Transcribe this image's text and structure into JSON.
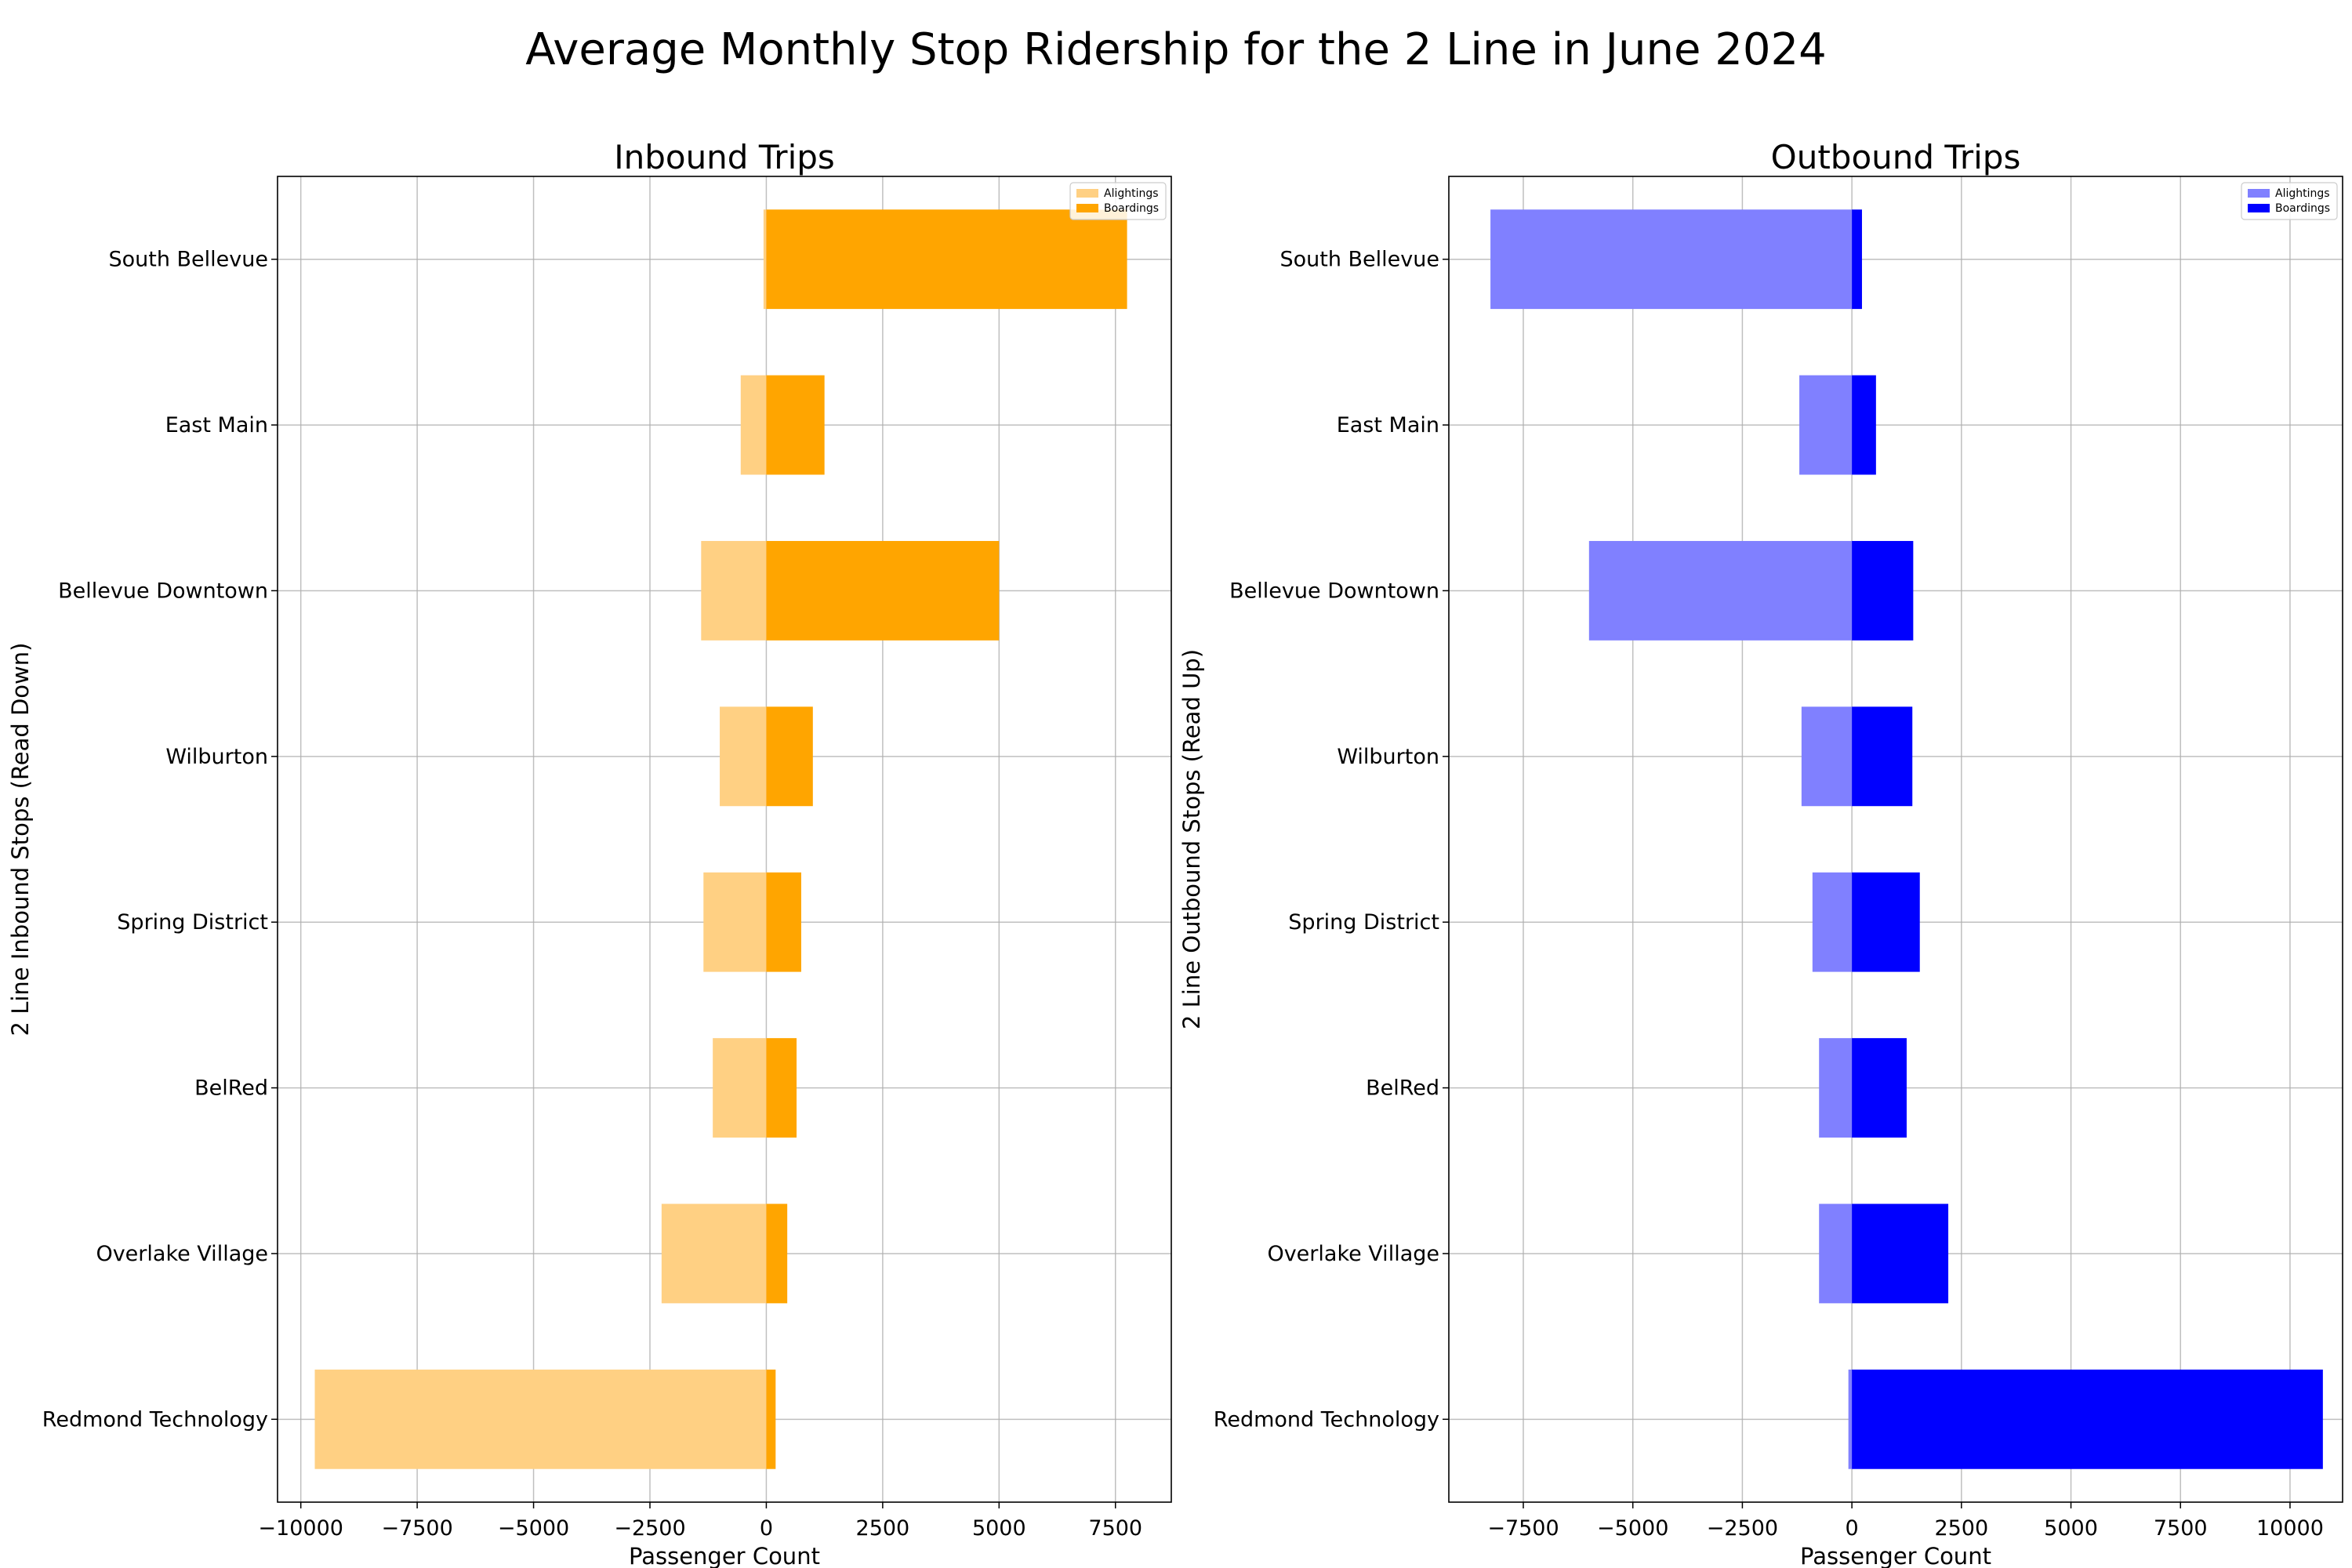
{
  "figure_title": "Average Monthly Stop Ridership for the 2 Line in June 2024",
  "colors": {
    "inbound_alightings": "#ffd083",
    "inbound_boardings": "#ffa500",
    "outbound_alightings": "#8080ff",
    "outbound_boardings": "#0000ff"
  },
  "chart_data": [
    {
      "type": "bar",
      "orientation": "horizontal",
      "title": "Inbound Trips",
      "xlabel": "Passenger Count",
      "ylabel": "2 Line Inbound Stops (Read Down)",
      "xlim": [
        -10500,
        8700
      ],
      "xticks": [
        -10000,
        -7500,
        -5000,
        -2500,
        0,
        2500,
        5000,
        7500
      ],
      "xtick_labels": [
        "−10000",
        "−7500",
        "−5000",
        "−2500",
        "0",
        "2500",
        "5000",
        "7500"
      ],
      "grid": true,
      "legend_position": "top-right",
      "categories": [
        "South Bellevue",
        "East Main",
        "Bellevue Downtown",
        "Wilburton",
        "Spring District",
        "BelRed",
        "Overlake Village",
        "Redmond Technology"
      ],
      "series": [
        {
          "name": "Alightings",
          "values": [
            -60,
            -550,
            -1400,
            -1000,
            -1350,
            -1150,
            -2250,
            -9700
          ]
        },
        {
          "name": "Boardings",
          "values": [
            7750,
            1250,
            5000,
            1000,
            750,
            650,
            450,
            200
          ]
        }
      ]
    },
    {
      "type": "bar",
      "orientation": "horizontal",
      "title": "Outbound Trips",
      "xlabel": "Passenger Count",
      "ylabel": "2 Line Outbound Stops (Read Up)",
      "xlim": [
        -9200,
        11200
      ],
      "xticks": [
        -7500,
        -5000,
        -2500,
        0,
        2500,
        5000,
        7500,
        10000
      ],
      "xtick_labels": [
        "−7500",
        "−5000",
        "−2500",
        "0",
        "2500",
        "5000",
        "7500",
        "10000"
      ],
      "grid": true,
      "legend_position": "top-right",
      "categories": [
        "South Bellevue",
        "East Main",
        "Bellevue Downtown",
        "Wilburton",
        "Spring District",
        "BelRed",
        "Overlake Village",
        "Redmond Technology"
      ],
      "series": [
        {
          "name": "Alightings",
          "values": [
            -8250,
            -1200,
            -6000,
            -1150,
            -900,
            -750,
            -750,
            -80
          ]
        },
        {
          "name": "Boardings",
          "values": [
            230,
            550,
            1400,
            1380,
            1550,
            1250,
            2200,
            10750
          ]
        }
      ]
    }
  ]
}
